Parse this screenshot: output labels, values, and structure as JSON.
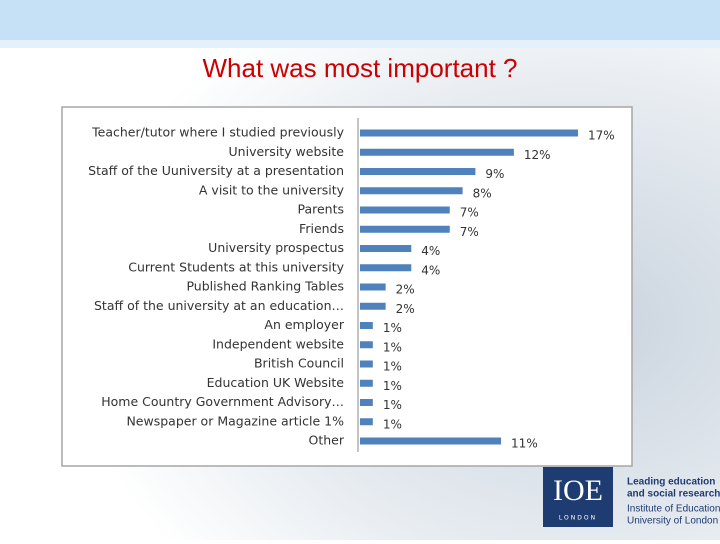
{
  "chart_data": {
    "type": "hbar",
    "title": "What was most important ?",
    "categories": [
      "Teacher/tutor where I studied previously",
      "University website",
      "Staff of the Uuniversity at a presentation",
      "A visit to the university",
      "Parents",
      "Friends",
      "University prospectus",
      "Current Students at this university",
      "Published Ranking Tables",
      "Staff of the university at an education…",
      "An employer",
      "Independent website",
      "British Council",
      "Education UK Website",
      "Home Country Government Advisory…",
      "Newspaper or Magazine article 1%",
      "Other"
    ],
    "values": [
      17,
      12,
      9,
      8,
      7,
      7,
      4,
      4,
      2,
      2,
      1,
      1,
      1,
      1,
      1,
      1,
      11
    ],
    "value_labels": [
      "17%",
      "12%",
      "9%",
      "8%",
      "7%",
      "7%",
      "4%",
      "4%",
      "2%",
      "2%",
      "1%",
      "1%",
      "1%",
      "1%",
      "1%",
      "1%",
      "11%"
    ],
    "color": "#4f81bd"
  },
  "logo": {
    "mark": "IOE",
    "place": "LONDON",
    "tagline": [
      "Leading education",
      "and social research"
    ],
    "name": [
      "Institute of Education",
      "University of London"
    ]
  }
}
